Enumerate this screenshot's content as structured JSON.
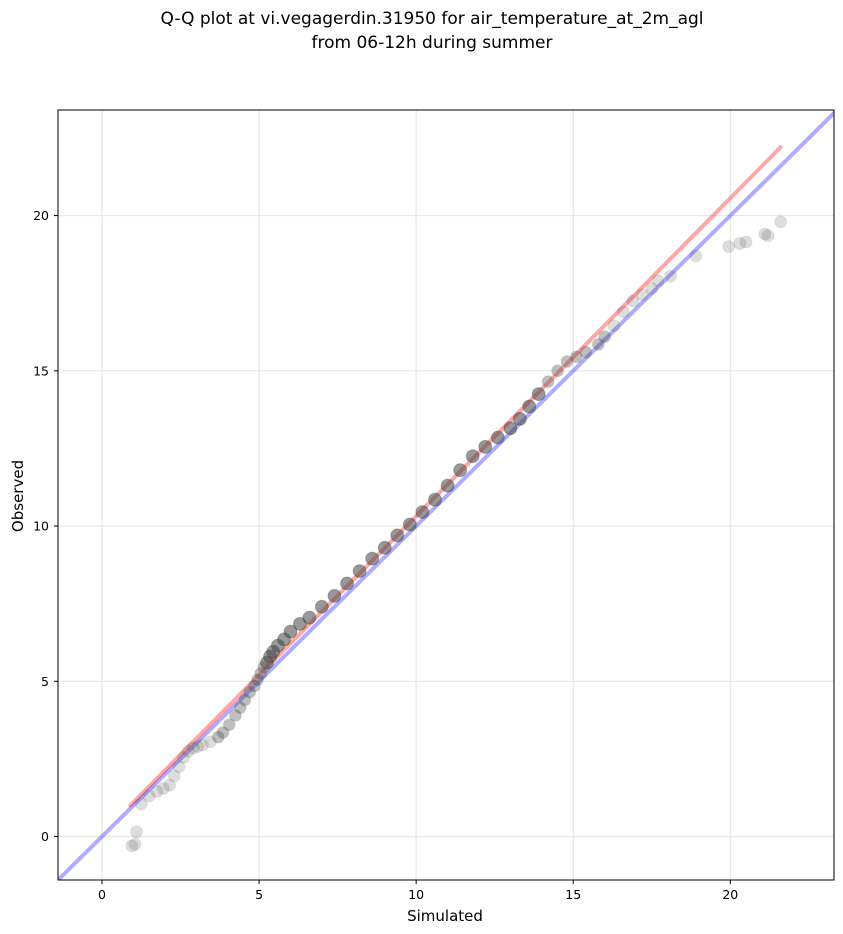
{
  "chart_data": {
    "type": "scatter",
    "title_lines": [
      "Q-Q plot at vi.vegagerdin.31950 for air_temperature_at_2m_agl",
      "from 06-12h during summer"
    ],
    "xlabel": "Simulated",
    "ylabel": "Observed",
    "xlim": [
      -1.4,
      23.3
    ],
    "ylim": [
      -1.4,
      23.4
    ],
    "xticks": [
      0,
      5,
      10,
      15,
      20
    ],
    "yticks": [
      0,
      5,
      10,
      15,
      20
    ],
    "grid": true,
    "colors": {
      "identity_line": "#0000ff",
      "fit_line": "#ff0000",
      "points": "#444444"
    },
    "reference_lines": [
      {
        "kind": "identity",
        "x": [
          -1.4,
          23.3
        ],
        "y": [
          -1.4,
          23.3
        ]
      },
      {
        "kind": "fit",
        "x": [
          0.9,
          21.6
        ],
        "y": [
          1.0,
          22.2
        ]
      }
    ],
    "points": {
      "x": [
        0.95,
        1.05,
        1.1,
        1.25,
        1.5,
        1.75,
        1.95,
        2.15,
        2.3,
        2.45,
        2.6,
        2.75,
        2.9,
        3.05,
        3.2,
        3.45,
        3.7,
        3.85,
        4.05,
        4.25,
        4.4,
        4.55,
        4.7,
        4.85,
        4.95,
        5.05,
        5.15,
        5.25,
        5.35,
        5.45,
        5.6,
        5.8,
        6.0,
        6.3,
        6.6,
        7.0,
        7.4,
        7.8,
        8.2,
        8.6,
        9.0,
        9.4,
        9.8,
        10.2,
        10.6,
        11.0,
        11.4,
        11.8,
        12.2,
        12.6,
        13.0,
        13.3,
        13.6,
        13.9,
        14.2,
        14.5,
        14.8,
        15.1,
        15.4,
        15.8,
        16.0,
        16.3,
        16.6,
        16.9,
        17.2,
        17.5,
        17.7,
        18.1,
        18.9,
        19.95,
        20.3,
        20.5,
        21.1,
        21.2,
        21.6
      ],
      "y": [
        -0.3,
        -0.25,
        0.15,
        1.05,
        1.3,
        1.45,
        1.55,
        1.65,
        1.95,
        2.25,
        2.55,
        2.75,
        2.85,
        2.9,
        2.95,
        3.05,
        3.2,
        3.35,
        3.6,
        3.9,
        4.15,
        4.4,
        4.65,
        4.85,
        5.05,
        5.25,
        5.45,
        5.6,
        5.8,
        5.95,
        6.15,
        6.35,
        6.6,
        6.85,
        7.05,
        7.4,
        7.75,
        8.15,
        8.55,
        8.95,
        9.3,
        9.7,
        10.05,
        10.45,
        10.85,
        11.3,
        11.8,
        12.25,
        12.55,
        12.85,
        13.15,
        13.45,
        13.85,
        14.25,
        14.65,
        15.0,
        15.3,
        15.45,
        15.6,
        15.85,
        16.1,
        16.45,
        16.9,
        17.25,
        17.45,
        17.65,
        17.9,
        18.05,
        18.7,
        19.0,
        19.1,
        19.15,
        19.4,
        19.35,
        19.8
      ]
    }
  }
}
